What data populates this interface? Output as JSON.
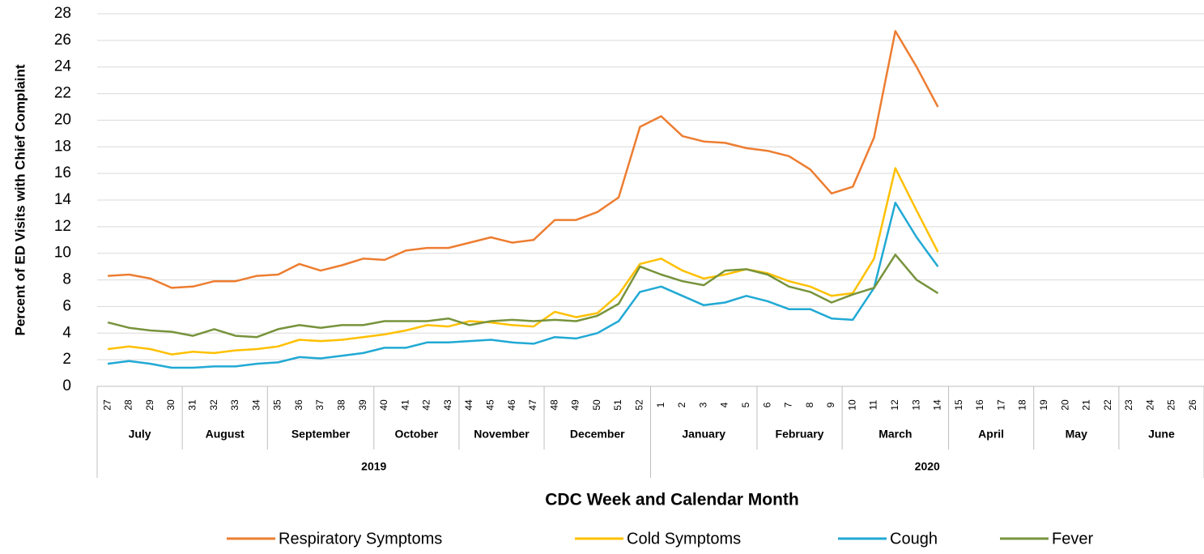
{
  "chart_data": {
    "type": "line",
    "y_label": "Percent of ED Visits with Chief Complaint",
    "x_label": "CDC Week and Calendar Month",
    "categories": [
      "27",
      "28",
      "29",
      "30",
      "31",
      "32",
      "33",
      "34",
      "35",
      "36",
      "37",
      "38",
      "39",
      "40",
      "41",
      "42",
      "43",
      "44",
      "45",
      "46",
      "47",
      "48",
      "49",
      "50",
      "51",
      "52",
      "1",
      "2",
      "3",
      "4",
      "5",
      "6",
      "7",
      "8",
      "9",
      "10",
      "11",
      "12",
      "13",
      "14",
      "15",
      "16",
      "17",
      "18",
      "19",
      "20",
      "21",
      "22",
      "23",
      "24",
      "25",
      "26"
    ],
    "months": [
      "July",
      "August",
      "September",
      "October",
      "November",
      "December",
      "January",
      "February",
      "March",
      "April",
      "May",
      "June"
    ],
    "years": [
      "2019",
      "2020"
    ],
    "ylim": [
      0,
      28
    ],
    "yticks": [
      0,
      2,
      4,
      6,
      8,
      10,
      12,
      14,
      16,
      18,
      20,
      22,
      24,
      26,
      28
    ],
    "grid": true,
    "legend": "bottom",
    "series": [
      {
        "name": "Respiratory Symptoms",
        "color": "#ed7d31",
        "values": [
          8.3,
          8.4,
          8.1,
          7.4,
          7.5,
          7.9,
          7.9,
          8.3,
          8.4,
          9.2,
          8.7,
          9.1,
          9.6,
          9.5,
          10.2,
          10.4,
          10.4,
          10.8,
          11.2,
          10.8,
          11.0,
          12.5,
          12.5,
          13.1,
          14.2,
          19.5,
          20.3,
          18.8,
          18.4,
          18.3,
          17.9,
          17.7,
          17.3,
          16.3,
          14.5,
          15.0,
          18.7,
          26.7,
          24.0,
          21.0,
          null,
          null,
          null,
          null,
          null,
          null,
          null,
          null,
          null,
          null,
          null,
          null
        ]
      },
      {
        "name": "Cold Symptoms",
        "color": "#ffc000",
        "values": [
          2.8,
          3.0,
          2.8,
          2.4,
          2.6,
          2.5,
          2.7,
          2.8,
          3.0,
          3.5,
          3.4,
          3.5,
          3.7,
          3.9,
          4.2,
          4.6,
          4.5,
          4.9,
          4.8,
          4.6,
          4.5,
          5.6,
          5.2,
          5.5,
          6.9,
          9.2,
          9.6,
          8.7,
          8.1,
          8.4,
          8.8,
          8.5,
          7.9,
          7.5,
          6.8,
          7.0,
          9.6,
          16.4,
          13.2,
          10.1,
          null,
          null,
          null,
          null,
          null,
          null,
          null,
          null,
          null,
          null,
          null,
          null
        ]
      },
      {
        "name": "Cough",
        "color": "#21a9d4",
        "values": [
          1.7,
          1.9,
          1.7,
          1.4,
          1.4,
          1.5,
          1.5,
          1.7,
          1.8,
          2.2,
          2.1,
          2.3,
          2.5,
          2.9,
          2.9,
          3.3,
          3.3,
          3.4,
          3.5,
          3.3,
          3.2,
          3.7,
          3.6,
          4.0,
          4.9,
          7.1,
          7.5,
          6.8,
          6.1,
          6.3,
          6.8,
          6.4,
          5.8,
          5.8,
          5.1,
          5.0,
          7.4,
          13.8,
          11.2,
          9.0,
          null,
          null,
          null,
          null,
          null,
          null,
          null,
          null,
          null,
          null,
          null,
          null
        ]
      },
      {
        "name": "Fever",
        "color": "#77933c",
        "values": [
          4.8,
          4.4,
          4.2,
          4.1,
          3.8,
          4.3,
          3.8,
          3.7,
          4.3,
          4.6,
          4.4,
          4.6,
          4.6,
          4.9,
          4.9,
          4.9,
          5.1,
          4.6,
          4.9,
          5.0,
          4.9,
          5.0,
          4.9,
          5.3,
          6.2,
          9.0,
          8.4,
          7.9,
          7.6,
          8.7,
          8.8,
          8.4,
          7.5,
          7.1,
          6.3,
          6.9,
          7.4,
          9.9,
          8.0,
          7.0,
          null,
          null,
          null,
          null,
          null,
          null,
          null,
          null,
          null,
          null,
          null,
          null
        ]
      }
    ]
  }
}
